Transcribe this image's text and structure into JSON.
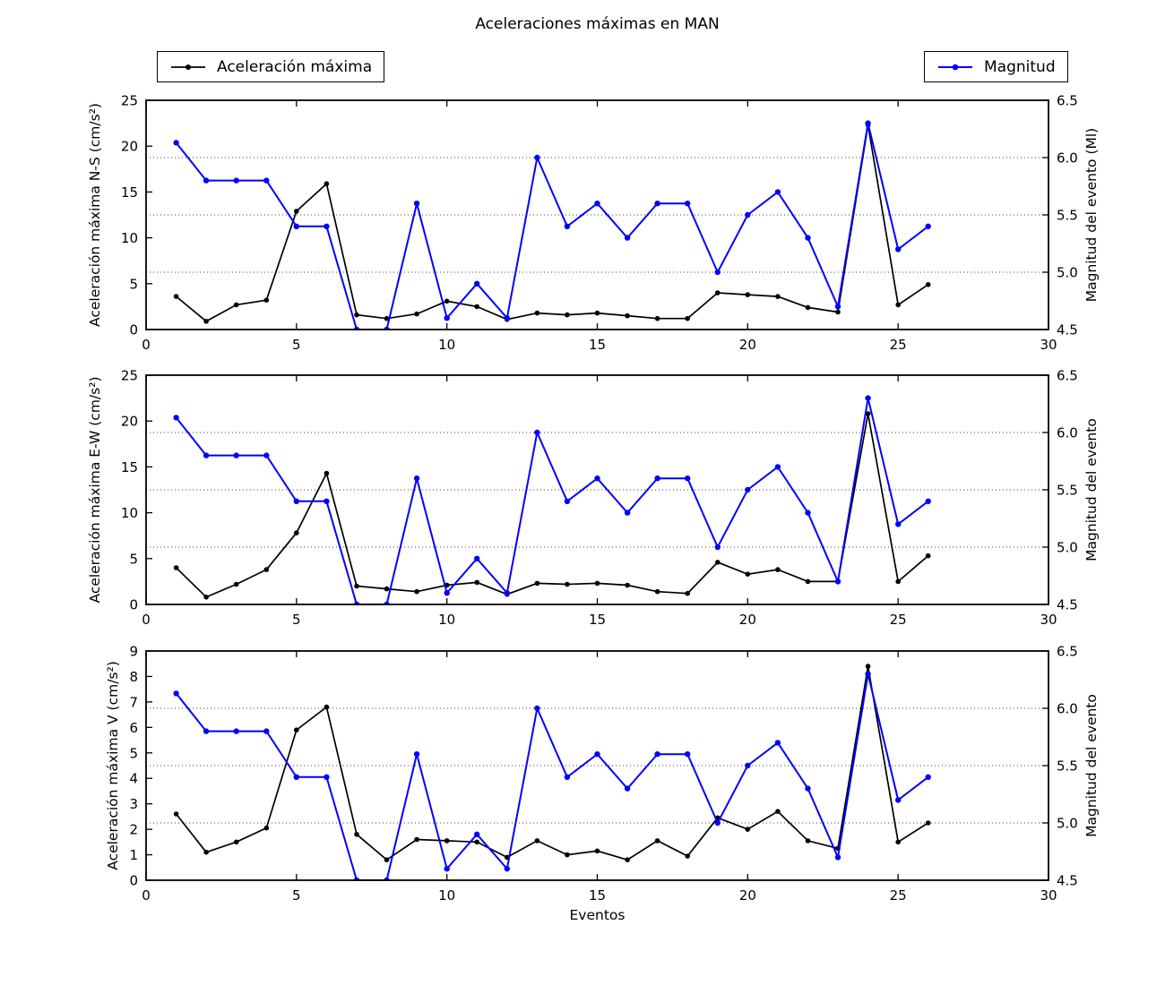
{
  "title": "Aceleraciones máximas en MAN",
  "xlabel": "Eventos",
  "legend": {
    "acceleration_label": "Aceleración máxima",
    "magnitude_label": "Magnitud"
  },
  "colors": {
    "acceleration": "#000000",
    "magnitude": "#0000ff",
    "grid": "#444444",
    "frame": "#000000"
  },
  "chart_data": [
    {
      "type": "line",
      "ylabel": "Aceleración máxima N-S (cm/s²)",
      "ylabel_right": "Magnitud del evento (Ml)",
      "xlim": [
        0,
        30
      ],
      "ylim": [
        0,
        25
      ],
      "ylim_right": [
        4.5,
        6.5
      ],
      "xticks": [
        0,
        5,
        10,
        15,
        20,
        25,
        30
      ],
      "yticks": [
        0,
        5,
        10,
        15,
        20,
        25
      ],
      "yticks_right": [
        4.5,
        5.0,
        5.5,
        6.0,
        6.5
      ],
      "grid_right_values": [
        5.0,
        5.5,
        6.0
      ],
      "grid": "dotted-horizontal",
      "x": [
        1,
        2,
        3,
        4,
        5,
        6,
        7,
        8,
        9,
        10,
        11,
        12,
        13,
        14,
        15,
        16,
        17,
        18,
        19,
        20,
        21,
        22,
        23,
        24,
        25,
        26
      ],
      "series": [
        {
          "name": "Aceleración máxima",
          "axis": "left",
          "color": "#000000",
          "values": [
            3.6,
            0.9,
            2.7,
            3.2,
            12.9,
            15.9,
            1.6,
            1.2,
            1.7,
            3.1,
            2.5,
            1.1,
            1.8,
            1.6,
            1.8,
            1.5,
            1.2,
            1.2,
            4.0,
            3.8,
            3.6,
            2.4,
            1.9,
            22.3,
            2.7,
            4.9
          ]
        },
        {
          "name": "Magnitud",
          "axis": "right",
          "color": "#0000ff",
          "values": [
            6.13,
            5.8,
            5.8,
            5.8,
            5.4,
            5.4,
            4.5,
            4.5,
            5.6,
            4.6,
            4.9,
            4.6,
            6.0,
            5.4,
            5.6,
            5.3,
            5.6,
            5.6,
            5.0,
            5.5,
            5.7,
            5.3,
            4.7,
            6.3,
            5.2,
            5.4
          ]
        }
      ]
    },
    {
      "type": "line",
      "ylabel": "Aceleración máxima E-W (cm/s²)",
      "ylabel_right": "Magnitud del evento",
      "xlim": [
        0,
        30
      ],
      "ylim": [
        0,
        25
      ],
      "ylim_right": [
        4.5,
        6.5
      ],
      "xticks": [
        0,
        5,
        10,
        15,
        20,
        25,
        30
      ],
      "yticks": [
        0,
        5,
        10,
        15,
        20,
        25
      ],
      "yticks_right": [
        4.5,
        5.0,
        5.5,
        6.0,
        6.5
      ],
      "grid_right_values": [
        5.0,
        5.5,
        6.0
      ],
      "grid": "dotted-horizontal",
      "x": [
        1,
        2,
        3,
        4,
        5,
        6,
        7,
        8,
        9,
        10,
        11,
        12,
        13,
        14,
        15,
        16,
        17,
        18,
        19,
        20,
        21,
        22,
        23,
        24,
        25,
        26
      ],
      "series": [
        {
          "name": "Aceleración máxima",
          "axis": "left",
          "color": "#000000",
          "values": [
            4.0,
            0.8,
            2.2,
            3.8,
            7.8,
            14.3,
            2.0,
            1.7,
            1.4,
            2.1,
            2.4,
            1.1,
            2.3,
            2.2,
            2.3,
            2.1,
            1.4,
            1.2,
            4.6,
            3.3,
            3.8,
            2.5,
            2.5,
            20.8,
            2.5,
            5.3
          ]
        },
        {
          "name": "Magnitud",
          "axis": "right",
          "color": "#0000ff",
          "values": [
            6.13,
            5.8,
            5.8,
            5.8,
            5.4,
            5.4,
            4.5,
            4.5,
            5.6,
            4.6,
            4.9,
            4.6,
            6.0,
            5.4,
            5.6,
            5.3,
            5.6,
            5.6,
            5.0,
            5.5,
            5.7,
            5.3,
            4.7,
            6.3,
            5.2,
            5.4
          ]
        }
      ]
    },
    {
      "type": "line",
      "ylabel": "Aceleración máxima V (cm/s²)",
      "ylabel_right": "Magnitud del evento",
      "xlim": [
        0,
        30
      ],
      "ylim": [
        0,
        9
      ],
      "ylim_right": [
        4.5,
        6.5
      ],
      "xticks": [
        0,
        5,
        10,
        15,
        20,
        25,
        30
      ],
      "yticks": [
        0,
        1,
        2,
        3,
        4,
        5,
        6,
        7,
        8,
        9
      ],
      "yticks_right": [
        4.5,
        5.0,
        5.5,
        6.0,
        6.5
      ],
      "grid_right_values": [
        5.0,
        5.5,
        6.0
      ],
      "grid": "dotted-horizontal",
      "x": [
        1,
        2,
        3,
        4,
        5,
        6,
        7,
        8,
        9,
        10,
        11,
        12,
        13,
        14,
        15,
        16,
        17,
        18,
        19,
        20,
        21,
        22,
        23,
        24,
        25,
        26
      ],
      "series": [
        {
          "name": "Aceleración máxima",
          "axis": "left",
          "color": "#000000",
          "values": [
            2.6,
            1.1,
            1.5,
            2.05,
            5.9,
            6.8,
            1.8,
            0.8,
            1.6,
            1.55,
            1.5,
            0.9,
            1.55,
            1.0,
            1.15,
            0.8,
            1.55,
            0.95,
            2.45,
            2.0,
            2.7,
            1.55,
            1.25,
            8.4,
            1.5,
            2.25
          ]
        },
        {
          "name": "Magnitud",
          "axis": "right",
          "color": "#0000ff",
          "values": [
            6.13,
            5.8,
            5.8,
            5.8,
            5.4,
            5.4,
            4.5,
            4.5,
            5.6,
            4.6,
            4.9,
            4.6,
            6.0,
            5.4,
            5.6,
            5.3,
            5.6,
            5.6,
            5.0,
            5.5,
            5.7,
            5.3,
            4.7,
            6.3,
            5.2,
            5.4
          ]
        }
      ]
    }
  ]
}
